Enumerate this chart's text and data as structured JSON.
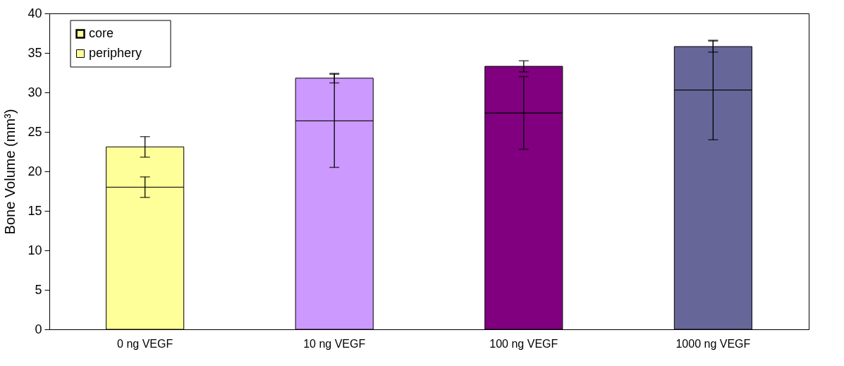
{
  "chart_data": {
    "type": "bar",
    "ylabel": "Bone Volume (mm³)",
    "categories": [
      "0 ng VEGF",
      "10 ng VEGF",
      "100 ng VEGF",
      "1000 ng VEGF"
    ],
    "stacked": true,
    "series": [
      {
        "name": "periphery",
        "colors": [
          "#ffff99",
          "#cc99ff",
          "#800080",
          "#666699"
        ],
        "values": [
          18.0,
          26.4,
          27.4,
          30.3
        ],
        "errors": [
          1.3,
          5.9,
          4.6,
          6.3
        ]
      },
      {
        "name": "core",
        "colors": [
          "#ffff99",
          "#cc99ff",
          "#800080",
          "#666699"
        ],
        "values": [
          5.1,
          5.4,
          5.9,
          5.5
        ],
        "errors": [
          1.3,
          0.6,
          0.7,
          0.7
        ]
      }
    ],
    "ylim": [
      0,
      40
    ],
    "yticks": [
      0,
      5,
      10,
      15,
      20,
      25,
      30,
      35,
      40
    ],
    "legend": "top left",
    "grid": false
  }
}
